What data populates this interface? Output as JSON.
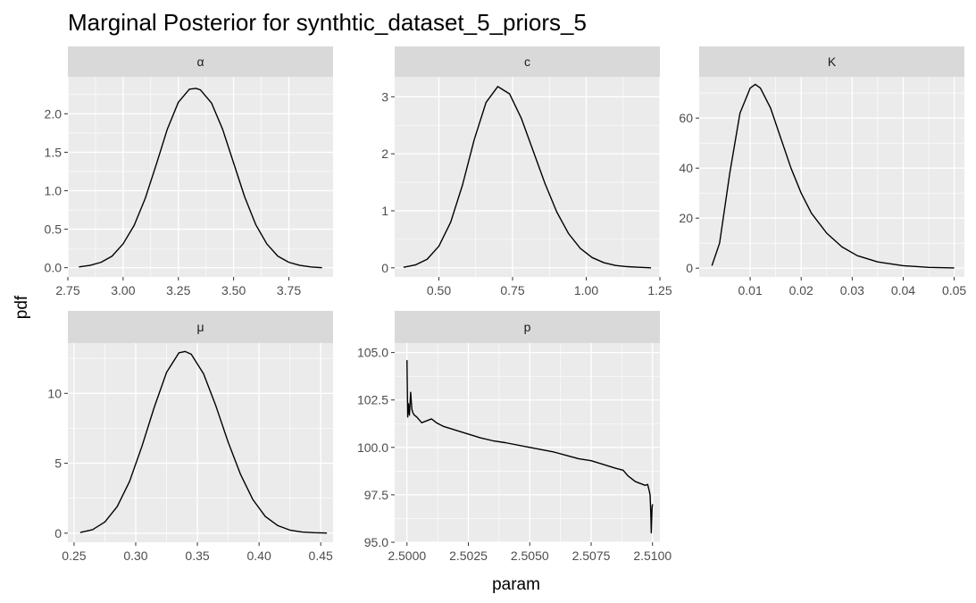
{
  "title": "Marginal Posterior for synthtic_dataset_5_priors_5",
  "xlabel": "param",
  "ylabel": "pdf",
  "colors": {
    "panel_bg": "#ebebeb",
    "strip_bg": "#d9d9d9",
    "grid": "#ffffff",
    "line": "#000000",
    "tick": "#333333"
  },
  "chart_data": [
    {
      "type": "line",
      "facet": "α",
      "xlim": [
        2.75,
        3.95
      ],
      "ylim": [
        -0.12,
        2.48
      ],
      "x_ticks": [
        2.75,
        3.0,
        3.25,
        3.5,
        3.75
      ],
      "x_tick_labels": [
        "2.75",
        "3.00",
        "3.25",
        "3.50",
        "3.75"
      ],
      "y_ticks": [
        0.0,
        0.5,
        1.0,
        1.5,
        2.0
      ],
      "y_tick_labels": [
        "0.0",
        "0.5",
        "1.0",
        "1.5",
        "2.0"
      ],
      "x": [
        2.8,
        2.85,
        2.9,
        2.95,
        3.0,
        3.05,
        3.1,
        3.15,
        3.2,
        3.25,
        3.3,
        3.33,
        3.35,
        3.4,
        3.45,
        3.5,
        3.55,
        3.6,
        3.65,
        3.7,
        3.75,
        3.8,
        3.85,
        3.9
      ],
      "y": [
        0.01,
        0.03,
        0.07,
        0.15,
        0.31,
        0.55,
        0.9,
        1.34,
        1.8,
        2.15,
        2.32,
        2.33,
        2.31,
        2.14,
        1.8,
        1.36,
        0.92,
        0.56,
        0.31,
        0.15,
        0.07,
        0.03,
        0.01,
        0.0
      ]
    },
    {
      "type": "line",
      "facet": "c",
      "xlim": [
        0.35,
        1.25
      ],
      "ylim": [
        -0.16,
        3.35
      ],
      "x_ticks": [
        0.5,
        0.75,
        1.0,
        1.25
      ],
      "x_tick_labels": [
        "0.50",
        "0.75",
        "1.00",
        "1.25"
      ],
      "y_ticks": [
        0,
        1,
        2,
        3
      ],
      "y_tick_labels": [
        "0",
        "1",
        "2",
        "3"
      ],
      "x": [
        0.38,
        0.42,
        0.46,
        0.5,
        0.54,
        0.58,
        0.62,
        0.66,
        0.7,
        0.74,
        0.78,
        0.82,
        0.86,
        0.9,
        0.94,
        0.98,
        1.02,
        1.06,
        1.1,
        1.14,
        1.18,
        1.22
      ],
      "y": [
        0.01,
        0.05,
        0.15,
        0.38,
        0.8,
        1.45,
        2.25,
        2.9,
        3.18,
        3.05,
        2.62,
        2.05,
        1.48,
        0.98,
        0.6,
        0.34,
        0.18,
        0.09,
        0.04,
        0.02,
        0.01,
        0.0
      ]
    },
    {
      "type": "line",
      "facet": "K",
      "xlim": [
        0.0,
        0.052
      ],
      "ylim": [
        -3.5,
        76.5
      ],
      "x_ticks": [
        0.01,
        0.02,
        0.03,
        0.04,
        0.05
      ],
      "x_tick_labels": [
        "0.01",
        "0.02",
        "0.03",
        "0.04",
        "0.05"
      ],
      "y_ticks": [
        0,
        20,
        40,
        60
      ],
      "y_tick_labels": [
        "0",
        "20",
        "40",
        "60"
      ],
      "x": [
        0.0025,
        0.004,
        0.006,
        0.008,
        0.01,
        0.011,
        0.012,
        0.014,
        0.016,
        0.018,
        0.02,
        0.022,
        0.025,
        0.028,
        0.031,
        0.035,
        0.04,
        0.045,
        0.05
      ],
      "y": [
        1,
        10,
        38,
        62,
        72,
        73.5,
        72,
        64,
        52,
        40,
        30,
        22,
        14,
        8.5,
        5,
        2.5,
        1,
        0.3,
        0.1
      ]
    },
    {
      "type": "line",
      "facet": "μ",
      "xlim": [
        0.245,
        0.46
      ],
      "ylim": [
        -0.65,
        13.6
      ],
      "x_ticks": [
        0.25,
        0.3,
        0.35,
        0.4,
        0.45
      ],
      "x_tick_labels": [
        "0.25",
        "0.30",
        "0.35",
        "0.40",
        "0.45"
      ],
      "y_ticks": [
        0,
        5,
        10
      ],
      "y_tick_labels": [
        "0",
        "5",
        "10"
      ],
      "x": [
        0.255,
        0.265,
        0.275,
        0.285,
        0.295,
        0.305,
        0.315,
        0.325,
        0.335,
        0.34,
        0.345,
        0.355,
        0.365,
        0.375,
        0.385,
        0.395,
        0.405,
        0.415,
        0.425,
        0.435,
        0.445,
        0.455
      ],
      "y": [
        0.05,
        0.25,
        0.8,
        1.9,
        3.7,
        6.2,
        9.0,
        11.5,
        12.9,
        13.0,
        12.8,
        11.4,
        9.1,
        6.5,
        4.2,
        2.4,
        1.2,
        0.55,
        0.22,
        0.08,
        0.03,
        0.01
      ]
    },
    {
      "type": "line",
      "facet": "p",
      "xlim": [
        2.4995,
        2.5103
      ],
      "ylim": [
        95.0,
        105.5
      ],
      "x_ticks": [
        2.5,
        2.5025,
        2.505,
        2.5075,
        2.51
      ],
      "x_tick_labels": [
        "2.5000",
        "2.5025",
        "2.5050",
        "2.5075",
        "2.5100"
      ],
      "y_ticks": [
        95.0,
        97.5,
        100.0,
        102.5,
        105.0
      ],
      "y_tick_labels": [
        "95.0",
        "97.5",
        "100.0",
        "102.5",
        "105.0"
      ],
      "x": [
        2.5,
        2.50003,
        2.50006,
        2.5001,
        2.50015,
        2.5002,
        2.50025,
        2.5003,
        2.5004,
        2.5006,
        2.5008,
        2.501,
        2.5012,
        2.5015,
        2.502,
        2.5025,
        2.503,
        2.5035,
        2.504,
        2.505,
        2.506,
        2.507,
        2.5075,
        2.508,
        2.5085,
        2.5088,
        2.509,
        2.5093,
        2.5095,
        2.5097,
        2.5098,
        2.50985,
        2.5099,
        2.50993,
        2.50995,
        2.50998,
        2.51
      ],
      "y": [
        104.6,
        101.6,
        102.3,
        101.7,
        102.9,
        102.0,
        101.8,
        101.7,
        101.6,
        101.3,
        101.4,
        101.5,
        101.3,
        101.1,
        100.9,
        100.7,
        100.5,
        100.35,
        100.25,
        100.0,
        99.75,
        99.4,
        99.3,
        99.1,
        98.9,
        98.8,
        98.5,
        98.2,
        98.1,
        98.0,
        98.05,
        97.8,
        97.5,
        96.5,
        95.5,
        96.8,
        97.0
      ]
    }
  ]
}
